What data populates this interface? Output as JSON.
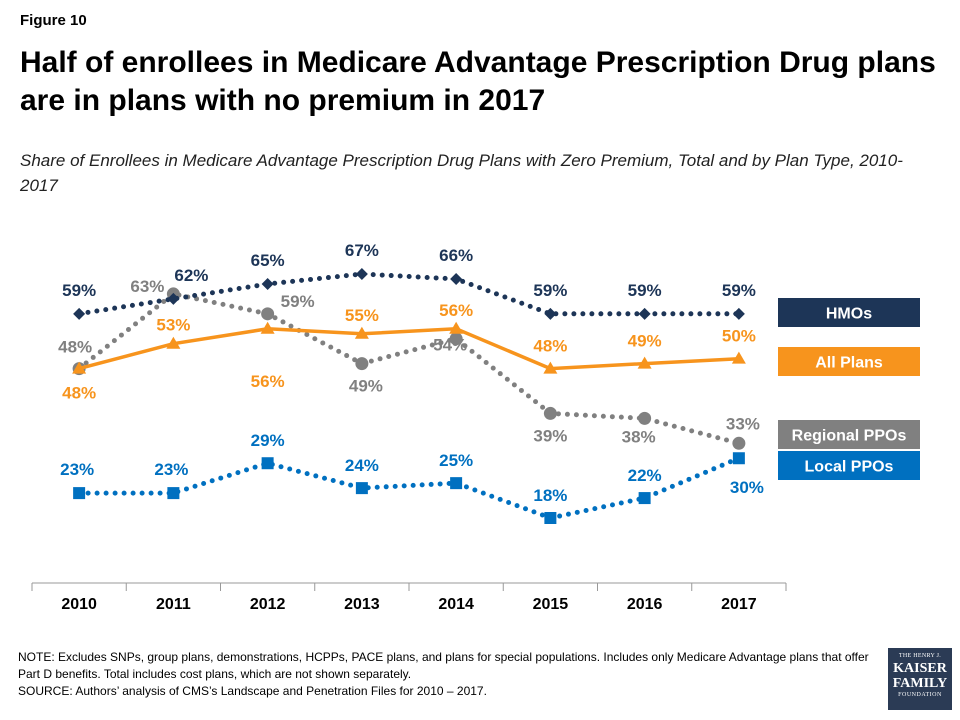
{
  "figure_label": "Figure 10",
  "title": "Half of enrollees in Medicare Advantage Prescription Drug plans are in plans with no premium in 2017",
  "subtitle": "Share of Enrollees in Medicare Advantage Prescription Drug Plans with Zero Premium, Total and by Plan Type, 2010-2017",
  "notes": {
    "note": "NOTE: Excludes SNPs, group plans, demonstrations,  HCPPs, PACE plans, and plans for special populations.  Includes only Medicare Advantage plans that offer Part D benefits. Total includes cost plans, which are not shown separately.",
    "source": "SOURCE: Authors’ analysis of CMS’s Landscape and Penetration  Files for 2010 – 2017."
  },
  "logo": {
    "line1": "THE HENRY J.",
    "line2": "KAISER",
    "line3": "FAMILY",
    "line4": "FOUNDATION"
  },
  "chart_data": {
    "type": "line",
    "categories": [
      "2010",
      "2011",
      "2012",
      "2013",
      "2014",
      "2015",
      "2016",
      "2017"
    ],
    "ylim": [
      0,
      100
    ],
    "series": [
      {
        "name": "HMOs",
        "values": [
          59,
          62,
          65,
          67,
          66,
          59,
          59,
          59
        ],
        "labels": [
          "59%",
          "62%",
          "65%",
          "67%",
          "66%",
          "59%",
          "59%",
          "59%"
        ],
        "color": "#1d3557",
        "marker": "diamond",
        "line_style": "dotted"
      },
      {
        "name": "All Plans",
        "values": [
          48,
          53,
          56,
          55,
          56,
          48,
          49,
          50
        ],
        "labels": [
          "48%",
          "53%",
          "56%",
          "55%",
          "56%",
          "48%",
          "49%",
          "50%"
        ],
        "color": "#f7941d",
        "marker": "triangle",
        "line_style": "solid"
      },
      {
        "name": "Regional PPOs",
        "values": [
          48,
          63,
          59,
          49,
          54,
          39,
          38,
          33
        ],
        "labels": [
          "48%",
          "63%",
          "59%",
          "49%",
          "54%",
          "39%",
          "38%",
          "33%"
        ],
        "color": "#808080",
        "marker": "circle",
        "line_style": "dotted"
      },
      {
        "name": "Local PPOs",
        "values": [
          23,
          23,
          29,
          24,
          25,
          18,
          22,
          30
        ],
        "labels": [
          "23%",
          "23%",
          "29%",
          "24%",
          "25%",
          "18%",
          "22%",
          "30%"
        ],
        "color": "#0070c0",
        "marker": "square",
        "line_style": "dotted"
      }
    ],
    "legend_placement": "right",
    "grid": false
  }
}
